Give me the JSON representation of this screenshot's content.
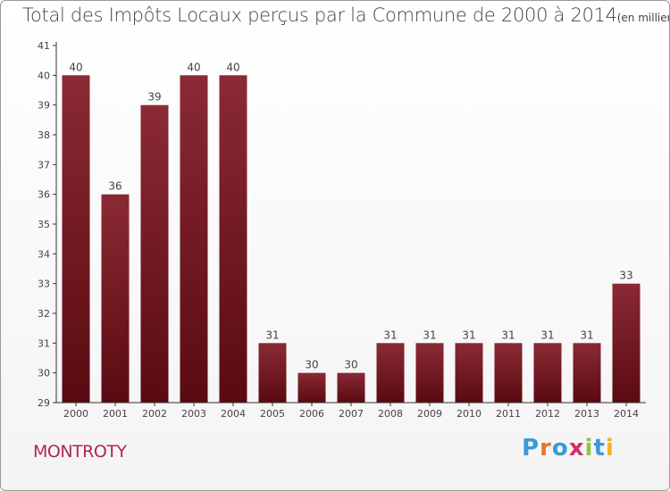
{
  "header": {
    "title": "Total des Impôts Locaux perçus par la Commune de 2000 à 2014",
    "unit_note": "(en milliers d'€)"
  },
  "footer": {
    "commune": "MONTROTY",
    "logo_letters": [
      "P",
      "r",
      "o",
      "x",
      "i",
      "t",
      "i"
    ],
    "logo_colors": [
      "#3a9ad9",
      "#e8742c",
      "#3a9ad9",
      "#d92b6e",
      "#8cc63f",
      "#3a9ad9",
      "#f2b31b"
    ]
  },
  "chart_data": {
    "type": "bar",
    "title": "Total des Impôts Locaux perçus par la Commune de 2000 à 2014",
    "subtitle": "(en milliers d'€)",
    "categories": [
      "2000",
      "2001",
      "2002",
      "2003",
      "2004",
      "2005",
      "2006",
      "2007",
      "2008",
      "2009",
      "2010",
      "2011",
      "2012",
      "2013",
      "2014"
    ],
    "values": [
      40,
      36,
      39,
      40,
      40,
      31,
      30,
      30,
      31,
      31,
      31,
      31,
      31,
      31,
      33
    ],
    "ylim": [
      29,
      41
    ],
    "yticks": [
      29,
      30,
      31,
      32,
      33,
      34,
      35,
      36,
      37,
      38,
      39,
      40,
      41
    ],
    "grid": false,
    "data_labels": true,
    "colors": {
      "bar_top": "#8a2a35",
      "bar_bottom": "#5a0a12",
      "axis": "#333333",
      "label": "#444444"
    }
  }
}
